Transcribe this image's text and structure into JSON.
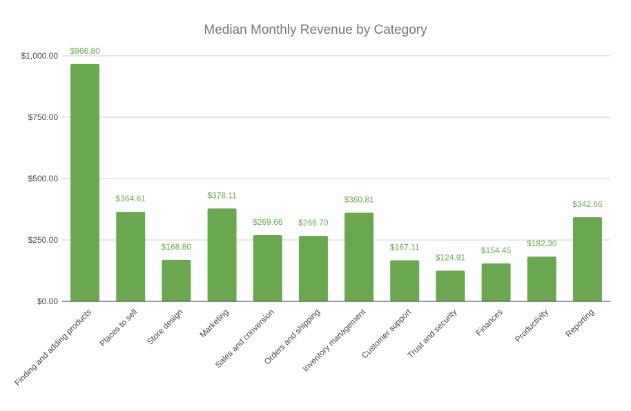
{
  "chart_data": {
    "type": "bar",
    "title": "Median Monthly Revenue by Category",
    "xlabel": "",
    "ylabel": "",
    "categories": [
      "Finding and adding products",
      "Places to sell",
      "Store design",
      "Marketing",
      "Sales and conversion",
      "Orders and shipping",
      "Inventory management",
      "Customer support",
      "Trust and security",
      "Finances",
      "Productivity",
      "Reporting"
    ],
    "values": [
      966.8,
      364.61,
      168.8,
      378.11,
      269.66,
      266.7,
      360.81,
      167.11,
      124.91,
      154.45,
      182.3,
      342.66
    ],
    "value_labels": [
      "$966.80",
      "$364.61",
      "$168.80",
      "$378.11",
      "$269.66",
      "$266.70",
      "$360.81",
      "$167.11",
      "$124.91",
      "$154.45",
      "$182.30",
      "$342.66"
    ],
    "ylim": [
      0,
      1000
    ],
    "yticks": [
      0,
      250,
      500,
      750,
      1000
    ],
    "ytick_labels": [
      "$0.00",
      "$250.00",
      "$500.00",
      "$750.00",
      "$1,000.00"
    ],
    "grid": true,
    "legend": "none",
    "bar_color": "#6aa84f",
    "label_color": "#6aa84f"
  }
}
